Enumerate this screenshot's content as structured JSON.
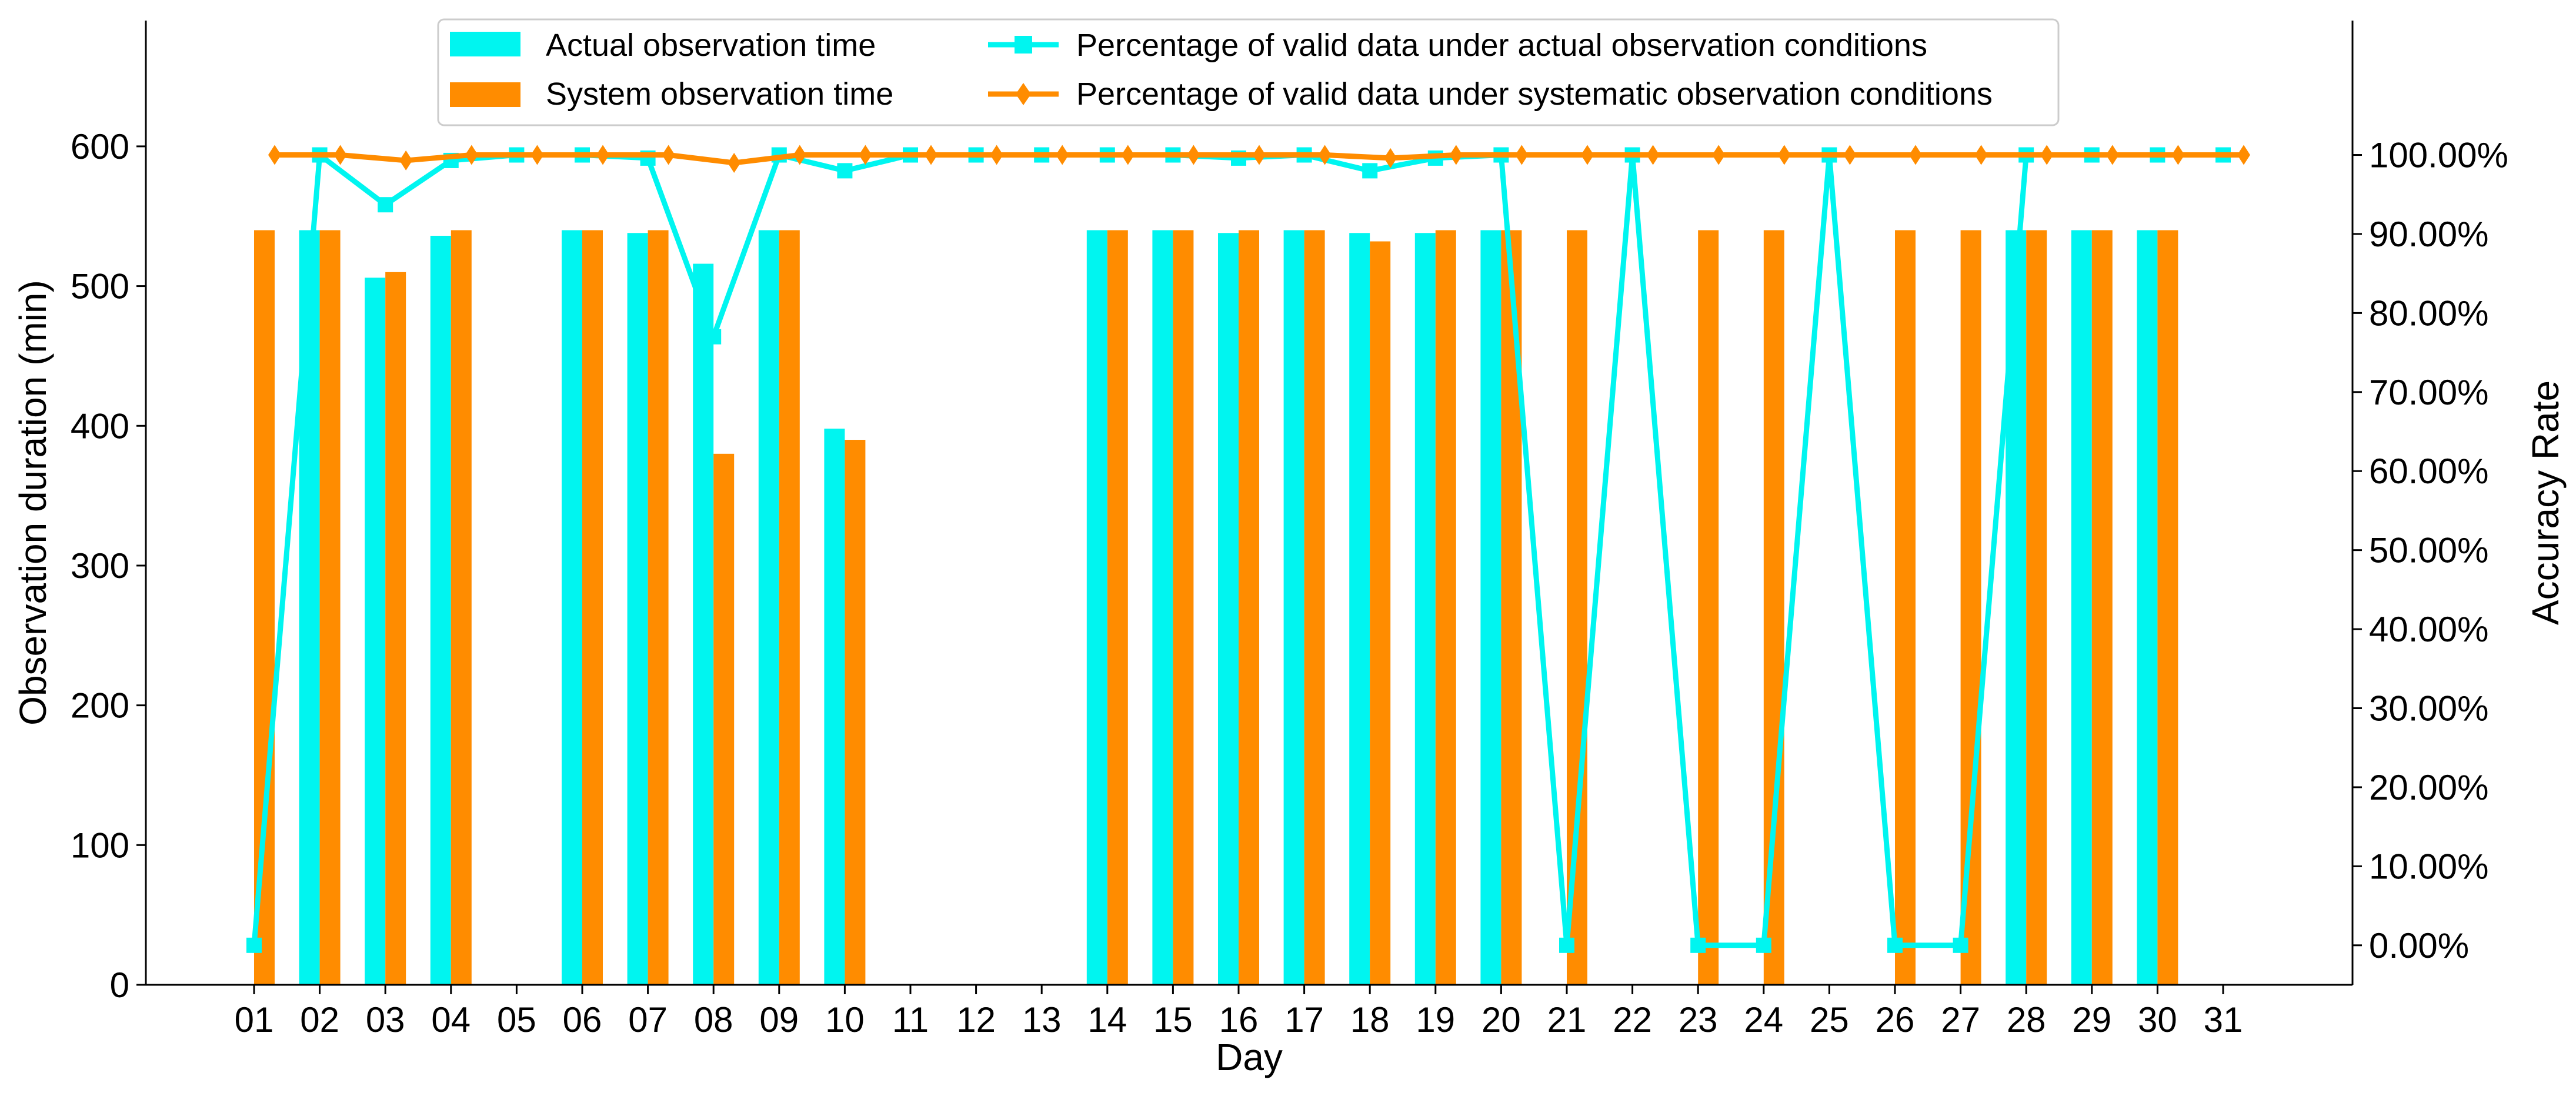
{
  "chart_data": {
    "type": "bar+line",
    "xlabel": "Day",
    "ylabel": "Observation duration (min)",
    "y2label": "Accuracy Rate",
    "categories": [
      "01",
      "02",
      "03",
      "04",
      "05",
      "06",
      "07",
      "08",
      "09",
      "10",
      "11",
      "12",
      "13",
      "14",
      "15",
      "16",
      "17",
      "18",
      "19",
      "20",
      "21",
      "22",
      "23",
      "24",
      "25",
      "26",
      "27",
      "28",
      "29",
      "30",
      "31"
    ],
    "ylim": [
      0,
      690
    ],
    "y_ticks": [
      0,
      100,
      200,
      300,
      400,
      500,
      600
    ],
    "y2lim": [
      -0.05,
      1.17
    ],
    "y2_ticks": [
      0,
      0.1,
      0.2,
      0.3,
      0.4,
      0.5,
      0.6,
      0.7,
      0.8,
      0.9,
      1.0
    ],
    "y2_tick_labels": [
      "0.00%",
      "10.00%",
      "20.00%",
      "30.00%",
      "40.00%",
      "50.00%",
      "60.00%",
      "70.00%",
      "80.00%",
      "90.00%",
      "100.00%"
    ],
    "bar_series": [
      {
        "name": "Actual observation time",
        "color": "#00f5f0",
        "values": [
          0,
          540,
          506,
          536,
          0,
          540,
          538,
          516,
          540,
          398,
          0,
          0,
          0,
          540,
          540,
          538,
          540,
          538,
          538,
          540,
          0,
          0,
          0,
          0,
          0,
          0,
          0,
          540,
          540,
          540,
          0
        ]
      },
      {
        "name": "System observation time",
        "color": "#ff8c00",
        "values": [
          540,
          540,
          510,
          540,
          0,
          540,
          540,
          380,
          540,
          390,
          0,
          0,
          0,
          540,
          540,
          540,
          540,
          532,
          540,
          540,
          540,
          0,
          540,
          540,
          0,
          540,
          540,
          540,
          540,
          540,
          0
        ]
      }
    ],
    "line_series": [
      {
        "name": "Percentage of valid data under actual observation conditions",
        "color": "#00f5f0",
        "marker": "square",
        "values": [
          0.0,
          1.0,
          0.937,
          0.993,
          1.0,
          1.0,
          0.996,
          0.77,
          1.0,
          0.98,
          1.0,
          1.0,
          1.0,
          1.0,
          1.0,
          0.996,
          1.0,
          0.98,
          0.996,
          1.0,
          0.0,
          1.0,
          0.0,
          0.0,
          1.0,
          0.0,
          0.0,
          1.0,
          1.0,
          1.0,
          1.0
        ]
      },
      {
        "name": "Percentage of valid data under systematic observation conditions",
        "color": "#ff8c00",
        "marker": "diamond",
        "values": [
          1.0,
          1.0,
          0.993,
          1.0,
          1.0,
          1.0,
          1.0,
          0.99,
          1.0,
          1.0,
          1.0,
          1.0,
          1.0,
          1.0,
          1.0,
          1.0,
          1.0,
          0.996,
          1.0,
          1.0,
          1.0,
          1.0,
          1.0,
          1.0,
          1.0,
          1.0,
          1.0,
          1.0,
          1.0,
          1.0,
          1.0
        ]
      }
    ],
    "legend_position": "top-center",
    "grid": false
  }
}
